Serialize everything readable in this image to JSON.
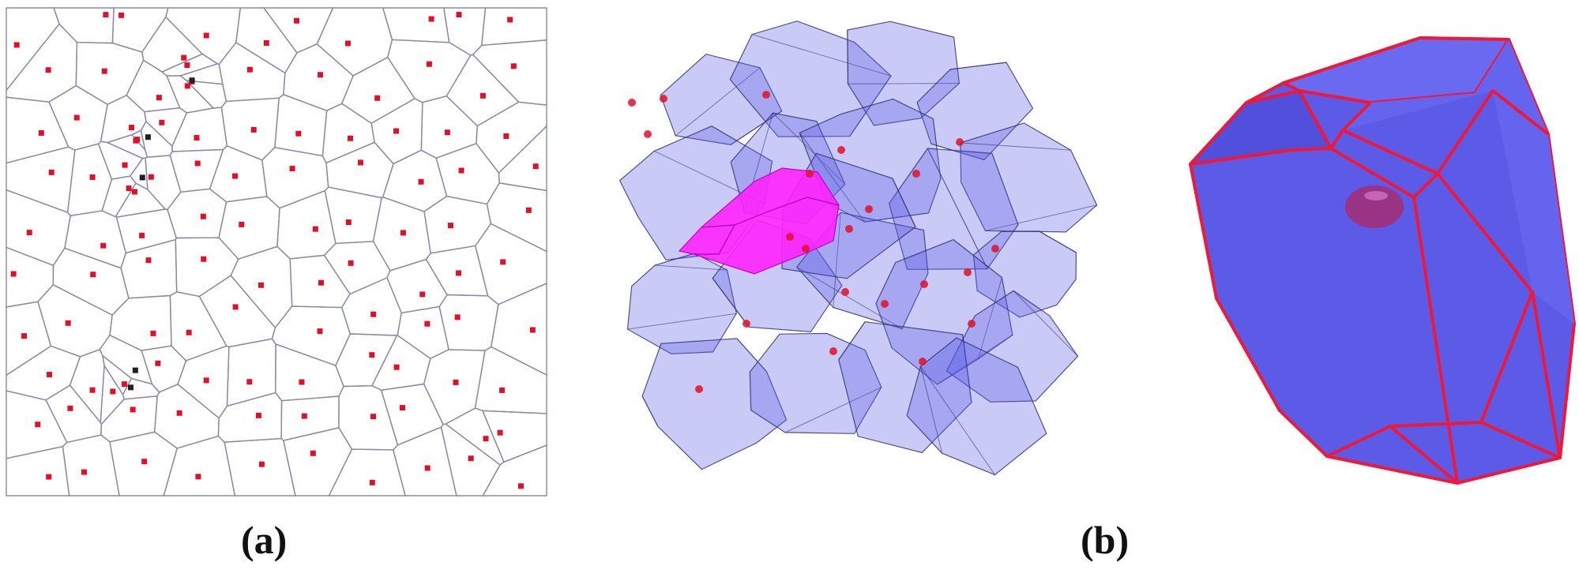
{
  "captions": {
    "a": "(a)",
    "b": "(b)"
  },
  "colors": {
    "edge": "#8a8aa8",
    "site": "#e0102a",
    "site_dark": "#231f20",
    "cell_fill": "#5a5ae6",
    "cell_stroke": "#2c2c6a",
    "highlight": "#ff22ff",
    "outline": "#f01838"
  }
}
